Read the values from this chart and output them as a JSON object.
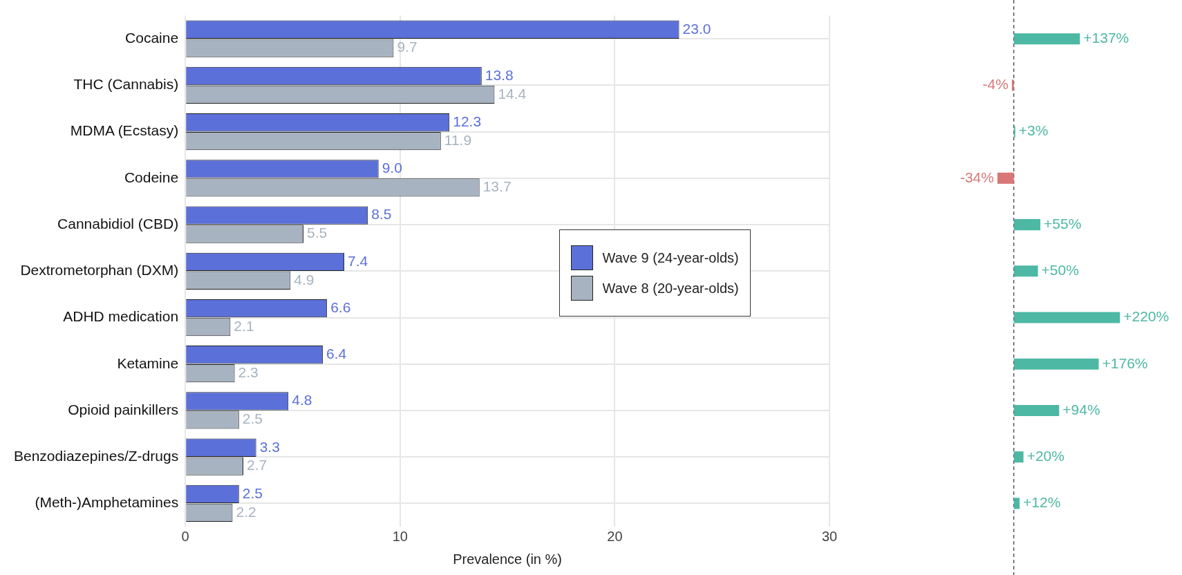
{
  "chart_data": [
    {
      "type": "bar",
      "orientation": "horizontal",
      "xlabel": "Prevalence (in %)",
      "categories": [
        "Cocaine",
        "THC (Cannabis)",
        "MDMA (Ecstasy)",
        "Codeine",
        "Cannabidiol (CBD)",
        "Dextrometorphan (DXM)",
        "ADHD medication",
        "Ketamine",
        "Opioid painkillers",
        "Benzodiazepines/Z-drugs",
        "(Meth-)Amphetamines"
      ],
      "series": [
        {
          "name": "Wave 9 (24-year-olds)",
          "color": "#5b70d8",
          "values": [
            23.0,
            13.8,
            12.3,
            9.0,
            8.5,
            7.4,
            6.6,
            6.4,
            4.8,
            3.3,
            2.5
          ],
          "value_labels": [
            "23.0",
            "13.8",
            "12.3",
            "9.0",
            "8.5",
            "7.4",
            "6.6",
            "6.4",
            "4.8",
            "3.3",
            "2.5"
          ]
        },
        {
          "name": "Wave 8 (20-year-olds)",
          "color": "#a7b3c0",
          "values": [
            9.7,
            14.4,
            11.9,
            13.7,
            5.5,
            4.9,
            2.1,
            2.3,
            2.5,
            2.7,
            2.2
          ],
          "value_labels": [
            "9.7",
            "14.4",
            "11.9",
            "13.7",
            "5.5",
            "4.9",
            "2.1",
            "2.3",
            "2.5",
            "2.7",
            "2.2"
          ]
        }
      ],
      "xlim": [
        0,
        30
      ],
      "xticks": [
        0,
        10,
        20,
        30
      ],
      "grid": true,
      "legend": "right"
    },
    {
      "type": "bar",
      "orientation": "horizontal",
      "tick_labels": false,
      "categories": [
        null,
        null,
        null,
        null,
        null,
        null,
        null,
        null,
        null,
        null,
        null
      ],
      "values": [
        137,
        -4,
        3,
        -34,
        55,
        50,
        220,
        176,
        94,
        20,
        12
      ],
      "colors": [
        "#4db8a4",
        "#d97777",
        "#4db8a4",
        "#d97777",
        "#4db8a4",
        "#4db8a4",
        "#4db8a4",
        "#4db8a4",
        "#4db8a4",
        "#4db8a4",
        "#4db8a4"
      ],
      "value_labels": [
        "+137%",
        "-4%",
        "+3%",
        "-34%",
        "+55%",
        "+50%",
        "+220%",
        "+176%",
        "+94%",
        "+20%",
        "+12%"
      ],
      "ref_lines": [
        {
          "axis": "x",
          "value": 0,
          "line_style": "dashed",
          "color": "#333333"
        }
      ]
    }
  ]
}
